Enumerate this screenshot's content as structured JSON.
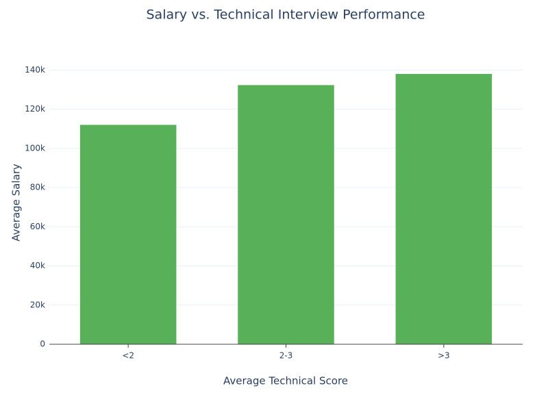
{
  "chart_data": {
    "type": "bar",
    "title": "Salary vs. Technical Interview Performance",
    "x_label": "Average Technical Score",
    "y_label": "Average Salary",
    "categories": [
      "<2",
      "2-3",
      ">3"
    ],
    "values": [
      112000,
      132300,
      138000
    ],
    "color": "#58b058",
    "ylim": [
      0,
      145000
    ],
    "yticks": [
      0,
      {
        "value": 20000,
        "label": "20k"
      },
      {
        "value": 40000,
        "label": "40k"
      },
      {
        "value": 60000,
        "label": "60k"
      },
      {
        "value": 80000,
        "label": "80k"
      },
      {
        "value": 100000,
        "label": "100k"
      },
      {
        "value": 120000,
        "label": "120k"
      },
      {
        "value": 140000,
        "label": "140k"
      }
    ],
    "grid": true
  }
}
